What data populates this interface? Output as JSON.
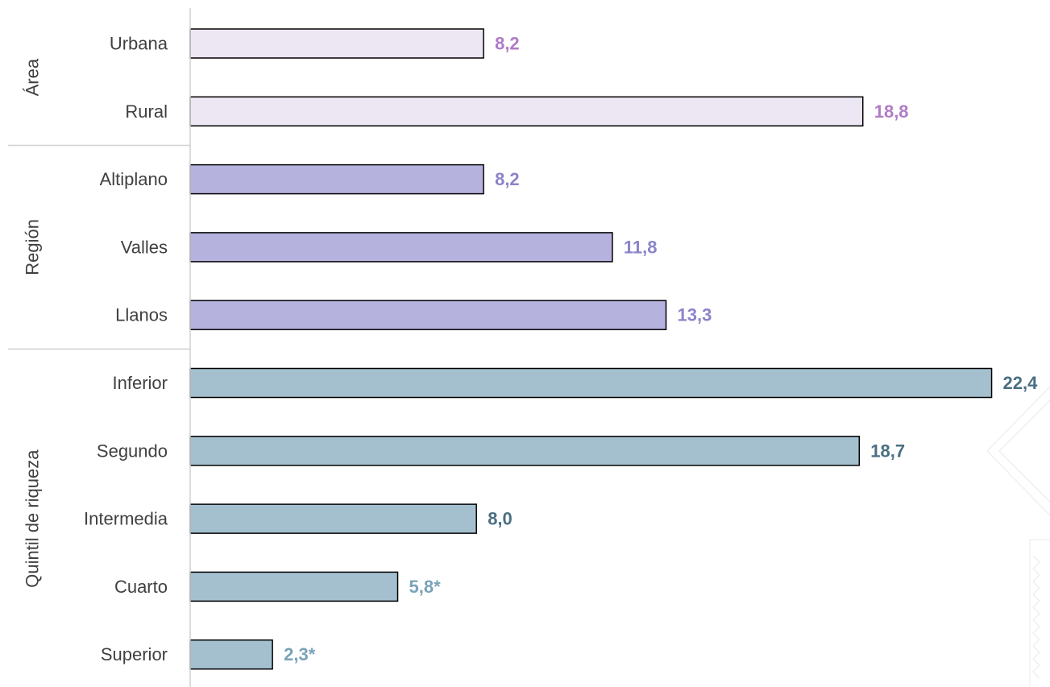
{
  "chart_data": {
    "type": "bar",
    "orientation": "horizontal",
    "groups": [
      {
        "label": "Área",
        "color": "#EDE6F3",
        "label_color": "#B07CC6",
        "items": [
          {
            "category": "Urbana",
            "value": 8.2,
            "label": "8,2"
          },
          {
            "category": "Rural",
            "value": 18.8,
            "label": "18,8"
          }
        ]
      },
      {
        "label": "Región",
        "color": "#B5B2DE",
        "label_color": "#8B84C9",
        "items": [
          {
            "category": "Altiplano",
            "value": 8.2,
            "label": "8,2"
          },
          {
            "category": "Valles",
            "value": 11.8,
            "label": "11,8"
          },
          {
            "category": "Llanos",
            "value": 13.3,
            "label": "13,3"
          }
        ]
      },
      {
        "label": "Quintil de riqueza",
        "color": "#A4C0CF",
        "label_color": "#4A6E82",
        "items": [
          {
            "category": "Inferior",
            "value": 22.4,
            "label": "22,4"
          },
          {
            "category": "Segundo",
            "value": 18.7,
            "label": "18,7"
          },
          {
            "category": "Intermedia",
            "value": 8.0,
            "label": "8,0"
          },
          {
            "category": "Cuarto",
            "value": 5.8,
            "label": "5,8*",
            "label_color": "#7AA3B8"
          },
          {
            "category": "Superior",
            "value": 2.3,
            "label": "2,3*",
            "label_color": "#7AA3B8"
          }
        ]
      }
    ],
    "xlim": [
      0,
      25
    ],
    "grid": false,
    "legend": "none"
  }
}
